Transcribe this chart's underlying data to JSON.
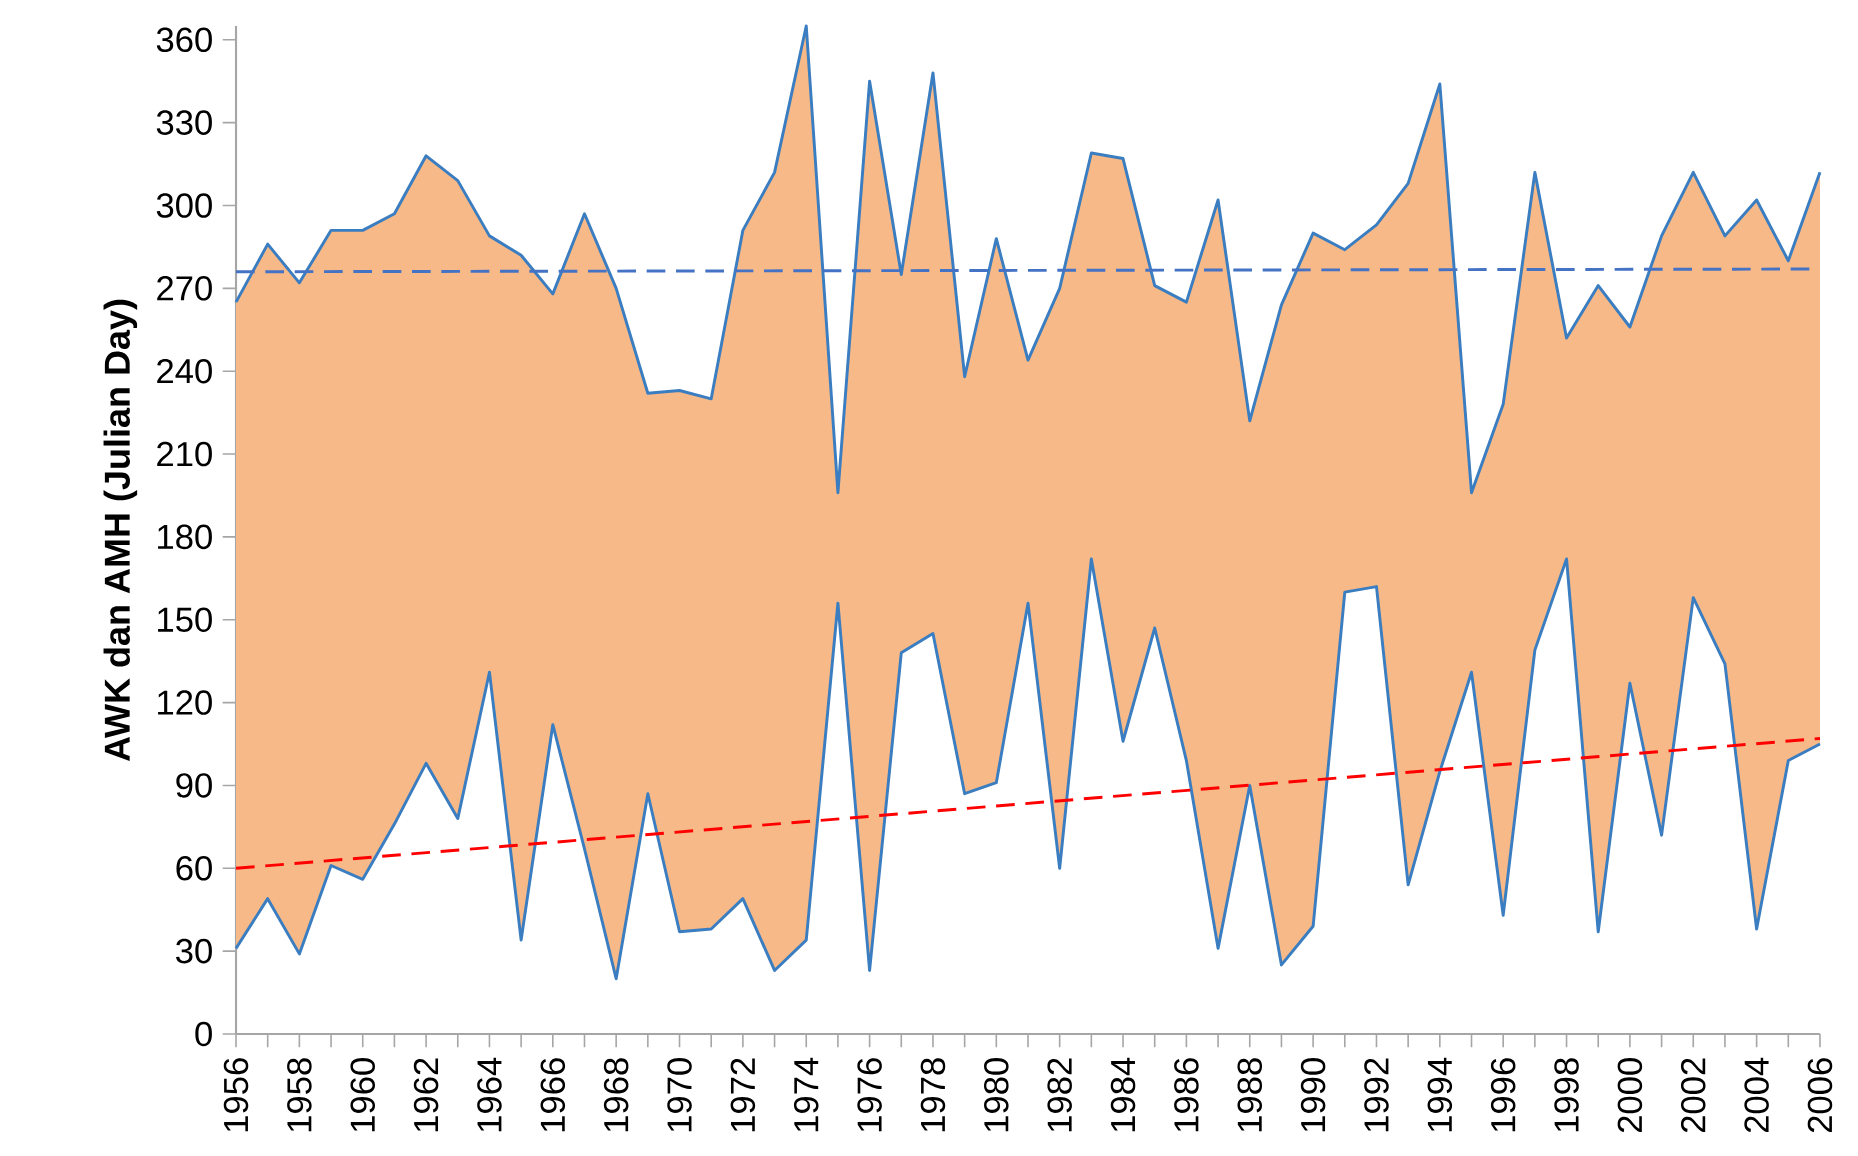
{
  "chart_data": {
    "type": "line",
    "ylabel": "AWK dan AMH (Julian Day)",
    "x": [
      1956,
      1957,
      1958,
      1959,
      1960,
      1961,
      1962,
      1963,
      1964,
      1965,
      1966,
      1967,
      1968,
      1969,
      1970,
      1971,
      1972,
      1973,
      1974,
      1975,
      1976,
      1977,
      1978,
      1979,
      1980,
      1981,
      1982,
      1983,
      1984,
      1985,
      1986,
      1987,
      1988,
      1989,
      1990,
      1991,
      1992,
      1993,
      1994,
      1995,
      1996,
      1997,
      1998,
      1999,
      2000,
      2001,
      2002,
      2003,
      2004,
      2005,
      2006
    ],
    "series": [
      {
        "color": "#3a7dc0",
        "values": [
          265,
          286,
          272,
          291,
          291,
          297,
          318,
          309,
          289,
          282,
          268,
          297,
          270,
          232,
          233,
          230,
          291,
          312,
          365,
          196,
          345,
          275,
          348,
          238,
          288,
          244,
          270,
          319,
          317,
          271,
          265,
          302,
          222,
          264,
          290,
          284,
          293,
          308,
          344,
          196,
          228,
          312,
          252,
          271,
          256,
          289,
          312,
          289,
          302,
          280,
          312
        ],
        "upper": [
          265,
          286,
          272,
          291,
          291,
          297,
          318,
          309,
          289,
          282,
          268,
          297,
          270,
          232,
          233,
          230,
          291,
          312,
          365,
          196,
          345,
          275,
          348,
          238,
          288,
          244,
          270,
          319,
          317,
          271,
          265,
          302,
          222,
          264,
          290,
          284,
          293,
          308,
          344,
          196,
          228,
          312,
          252,
          271,
          256,
          289,
          312,
          289,
          302,
          280,
          312
        ],
        "lower": [
          31,
          49,
          29,
          61,
          56,
          76,
          98,
          78,
          131,
          34,
          112,
          67,
          20,
          87,
          37,
          38,
          49,
          23,
          34,
          156,
          23,
          138,
          145,
          87,
          91,
          156,
          60,
          172,
          106,
          147,
          99,
          31,
          90,
          25,
          39,
          160,
          162,
          54,
          95,
          131,
          43,
          139,
          172,
          37,
          127,
          72,
          158,
          134,
          38,
          99,
          105
        ]
      },
      {
        "color": "#3a7dc0",
        "values": [
          31,
          49,
          29,
          61,
          56,
          76,
          98,
          78,
          131,
          34,
          112,
          67,
          20,
          87,
          37,
          38,
          49,
          23,
          34,
          156,
          23,
          138,
          145,
          87,
          91,
          156,
          60,
          172,
          106,
          147,
          99,
          31,
          90,
          25,
          39,
          160,
          162,
          54,
          95,
          131,
          43,
          139,
          172,
          37,
          127,
          72,
          158,
          134,
          38,
          99,
          105
        ]
      },
      {
        "color": "#4472c4",
        "line_style": "dashed",
        "values": [
          276,
          null,
          null,
          null,
          null,
          null,
          null,
          null,
          null,
          null,
          null,
          null,
          null,
          null,
          null,
          null,
          null,
          null,
          null,
          null,
          null,
          null,
          null,
          null,
          null,
          null,
          null,
          null,
          null,
          null,
          null,
          null,
          null,
          null,
          null,
          null,
          null,
          null,
          null,
          null,
          null,
          null,
          null,
          null,
          null,
          null,
          null,
          null,
          null,
          null,
          277
        ]
      },
      {
        "color": "#ff0000",
        "line_style": "dashed",
        "values": [
          60,
          null,
          null,
          null,
          null,
          null,
          null,
          null,
          null,
          null,
          null,
          null,
          null,
          null,
          null,
          null,
          null,
          null,
          null,
          null,
          null,
          null,
          null,
          null,
          null,
          null,
          null,
          null,
          null,
          null,
          null,
          null,
          null,
          null,
          null,
          null,
          null,
          null,
          null,
          null,
          null,
          null,
          null,
          null,
          null,
          null,
          null,
          null,
          null,
          null,
          107
        ]
      }
    ],
    "xlim": [
      1956,
      2006
    ],
    "ylim": [
      0,
      365
    ],
    "xticks": [
      {
        "value": 1956,
        "label": "1956"
      },
      {
        "value": 1957,
        "label": null
      },
      {
        "value": 1958,
        "label": "1958"
      },
      {
        "value": 1959,
        "label": null
      },
      {
        "value": 1960,
        "label": "1960"
      },
      {
        "value": 1961,
        "label": null
      },
      {
        "value": 1962,
        "label": "1962"
      },
      {
        "value": 1963,
        "label": null
      },
      {
        "value": 1964,
        "label": "1964"
      },
      {
        "value": 1965,
        "label": null
      },
      {
        "value": 1966,
        "label": "1966"
      },
      {
        "value": 1967,
        "label": null
      },
      {
        "value": 1968,
        "label": "1968"
      },
      {
        "value": 1969,
        "label": null
      },
      {
        "value": 1970,
        "label": "1970"
      },
      {
        "value": 1971,
        "label": null
      },
      {
        "value": 1972,
        "label": "1972"
      },
      {
        "value": 1973,
        "label": null
      },
      {
        "value": 1974,
        "label": "1974"
      },
      {
        "value": 1975,
        "label": null
      },
      {
        "value": 1976,
        "label": "1976"
      },
      {
        "value": 1977,
        "label": null
      },
      {
        "value": 1978,
        "label": "1978"
      },
      {
        "value": 1979,
        "label": null
      },
      {
        "value": 1980,
        "label": "1980"
      },
      {
        "value": 1981,
        "label": null
      },
      {
        "value": 1982,
        "label": "1982"
      },
      {
        "value": 1983,
        "label": null
      },
      {
        "value": 1984,
        "label": "1984"
      },
      {
        "value": 1985,
        "label": null
      },
      {
        "value": 1986,
        "label": "1986"
      },
      {
        "value": 1987,
        "label": null
      },
      {
        "value": 1988,
        "label": "1988"
      },
      {
        "value": 1989,
        "label": null
      },
      {
        "value": 1990,
        "label": "1990"
      },
      {
        "value": 1991,
        "label": null
      },
      {
        "value": 1992,
        "label": "1992"
      },
      {
        "value": 1993,
        "label": null
      },
      {
        "value": 1994,
        "label": "1994"
      },
      {
        "value": 1995,
        "label": null
      },
      {
        "value": 1996,
        "label": "1996"
      },
      {
        "value": 1997,
        "label": null
      },
      {
        "value": 1998,
        "label": "1998"
      },
      {
        "value": 1999,
        "label": null
      },
      {
        "value": 2000,
        "label": "2000"
      },
      {
        "value": 2001,
        "label": null
      },
      {
        "value": 2002,
        "label": "2002"
      },
      {
        "value": 2003,
        "label": null
      },
      {
        "value": 2004,
        "label": "2004"
      },
      {
        "value": 2005,
        "label": null
      },
      {
        "value": 2006,
        "label": "2006"
      }
    ],
    "yticks": [
      0,
      30,
      60,
      90,
      120,
      150,
      180,
      210,
      240,
      270,
      300,
      330,
      360
    ],
    "grid": false,
    "marker": "none"
  }
}
